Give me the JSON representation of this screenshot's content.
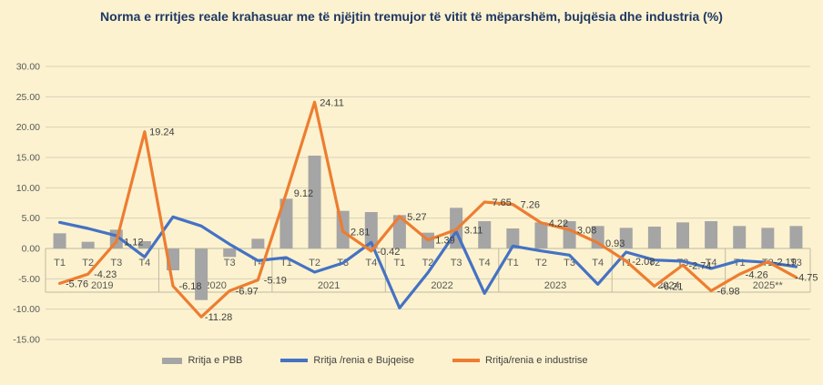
{
  "chart_data": {
    "type": "combo",
    "title": "Norma e rrritjes reale krahasuar me të njëjtin tremujor të vitit të mëparshëm, bujqësia dhe industria (%)",
    "ylim": [
      -15,
      30
    ],
    "y_ticks": [
      30,
      25,
      20,
      15,
      10,
      5,
      0,
      -5,
      -10,
      -15
    ],
    "grid": true,
    "legend_position": "bottom",
    "year_groups": [
      {
        "label": "2019",
        "quarters": [
          "T1",
          "T2",
          "T3",
          "T4"
        ]
      },
      {
        "label": "2020",
        "quarters": [
          "T1",
          "T2",
          "T3",
          "T4"
        ]
      },
      {
        "label": "2021",
        "quarters": [
          "T1",
          "T2",
          "T3",
          "T4"
        ]
      },
      {
        "label": "2022",
        "quarters": [
          "T1",
          "T2",
          "T3",
          "T4"
        ]
      },
      {
        "label": "2023",
        "quarters": [
          "T1",
          "T2",
          "T3",
          "T4"
        ]
      },
      {
        "label": "2024",
        "quarters": [
          "T1",
          "T2",
          "T3",
          "T4"
        ]
      },
      {
        "label": "2025**",
        "quarters": [
          "T1",
          "T2",
          "T3"
        ]
      }
    ],
    "series": [
      {
        "name": "Rritja e PBB",
        "type": "bar",
        "color": "#A5A5A5",
        "values": [
          2.5,
          1.1,
          3.1,
          1.2,
          -3.6,
          -8.5,
          -1.4,
          1.6,
          8.2,
          15.3,
          6.2,
          6.0,
          5.5,
          2.6,
          6.7,
          4.5,
          3.3,
          4.3,
          4.5,
          3.7,
          3.4,
          3.6,
          4.3,
          4.5,
          3.7,
          3.4,
          3.7
        ]
      },
      {
        "name": "Rritja /renia e Bujqeise",
        "type": "line",
        "color": "#4472C4",
        "values": [
          4.3,
          3.3,
          2.1,
          -1.4,
          5.2,
          3.7,
          0.7,
          -2.0,
          -1.5,
          -3.9,
          -2.4,
          1.0,
          -9.8,
          -4.0,
          2.8,
          -7.4,
          0.4,
          -0.4,
          -1.1,
          -5.9,
          -0.6,
          -1.9,
          -2.1,
          -3.3,
          -2.0,
          -2.3,
          -3.0
        ]
      },
      {
        "name": "Rritja/renia e industrise",
        "type": "line",
        "color": "#ED7D31",
        "data_labels": true,
        "values": [
          -5.76,
          -4.23,
          1.12,
          19.24,
          -6.18,
          -11.28,
          -6.97,
          -5.19,
          9.12,
          24.11,
          2.81,
          -0.42,
          5.27,
          1.39,
          3.11,
          7.65,
          7.26,
          4.22,
          3.08,
          0.93,
          -2.08,
          -6.21,
          -2.74,
          -6.98,
          -4.26,
          -2.19,
          -4.75
        ]
      }
    ],
    "colors": {
      "background": "#FCF2CF",
      "grid": "#DAD2B9",
      "axis": "#C1BAA2",
      "tick_text": "#595959",
      "label_text": "#404040",
      "title_text": "#1F3864"
    }
  }
}
